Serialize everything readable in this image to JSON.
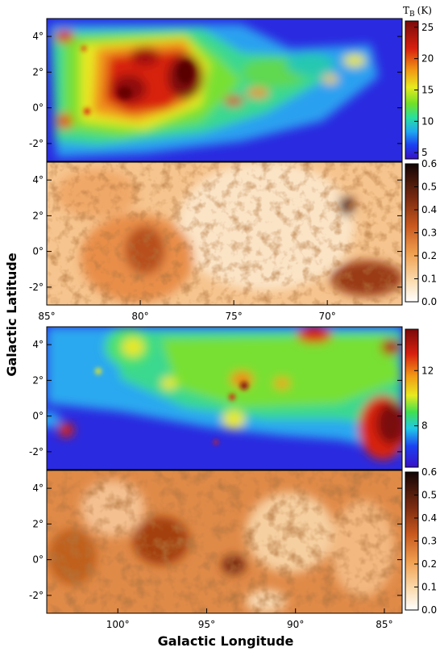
{
  "figure": {
    "xlabel": "Galactic Longitude",
    "ylabel": "Galactic Latitude"
  },
  "colors": {
    "background": "#ffffff",
    "axis": "#000000"
  },
  "chart_data": [
    {
      "type": "heatmap",
      "name": "top brightness temperature map",
      "xlim": [
        85,
        66
      ],
      "ylim": [
        -3,
        5
      ],
      "xticks": [],
      "yticks": [
        "-2°",
        "0°",
        "2°",
        "4°"
      ],
      "colorbar": {
        "title": "T",
        "subscript": "B",
        "unit": "(K)",
        "ticks": [
          "5",
          "10",
          "15",
          "20",
          "25"
        ],
        "range": [
          4,
          26
        ]
      }
    },
    {
      "type": "heatmap",
      "name": "top fraction map",
      "xlim": [
        85,
        66
      ],
      "ylim": [
        -3,
        5
      ],
      "xticks": [
        "85°",
        "80°",
        "75°",
        "70°"
      ],
      "yticks": [
        "-2°",
        "0°",
        "2°",
        "4°"
      ],
      "colorbar": {
        "ticks": [
          "0.0",
          "0.1",
          "0.2",
          "0.3",
          "0.4",
          "0.5",
          "0.6"
        ],
        "range": [
          0,
          0.6
        ]
      }
    },
    {
      "type": "heatmap",
      "name": "bottom brightness temperature map",
      "xlim": [
        104,
        84
      ],
      "ylim": [
        -3,
        5
      ],
      "xticks": [],
      "yticks": [
        "-2°",
        "0°",
        "2°",
        "4°"
      ],
      "colorbar": {
        "ticks": [
          "8",
          "12"
        ],
        "range": [
          5,
          15
        ]
      }
    },
    {
      "type": "heatmap",
      "name": "bottom fraction map",
      "xlim": [
        104,
        84
      ],
      "ylim": [
        -3,
        5
      ],
      "xticks": [
        "100°",
        "95°",
        "90°",
        "85°"
      ],
      "yticks": [
        "-2°",
        "0°",
        "2°",
        "4°"
      ],
      "colorbar": {
        "ticks": [
          "0.0",
          "0.1",
          "0.2",
          "0.3",
          "0.4",
          "0.5",
          "0.6"
        ],
        "range": [
          0,
          0.6
        ]
      }
    }
  ]
}
